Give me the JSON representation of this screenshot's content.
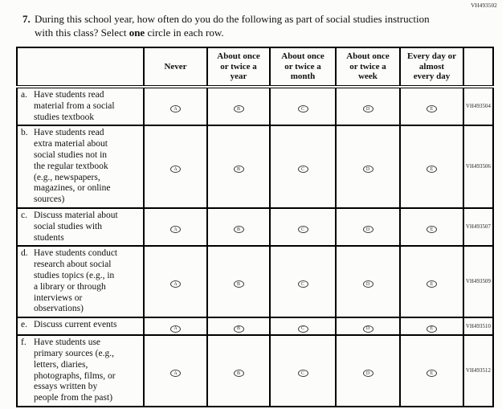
{
  "page": {
    "top_right_code": "VH493502"
  },
  "question": {
    "number": "7.",
    "text_part1": "During this school year, how often do you do the following as part of social studies instruction with this class? Select ",
    "bold_word": "one",
    "text_part2": " circle in each row."
  },
  "table": {
    "columns": [
      "Never",
      "About once\nor twice a\nyear",
      "About once\nor twice a\nmonth",
      "About once\nor twice a\nweek",
      "Every day or\nalmost\nevery day"
    ],
    "option_letters": [
      "A",
      "B",
      "C",
      "D",
      "E"
    ],
    "rows": [
      {
        "letter": "a.",
        "label": "Have students read\nmaterial from a social\nstudies textbook",
        "code": "VH493504"
      },
      {
        "letter": "b.",
        "label": "Have students read\nextra material about\nsocial studies not in\nthe regular textbook\n(e.g., newspapers,\nmagazines, or online\nsources)",
        "code": "VH493506"
      },
      {
        "letter": "c.",
        "label": "Discuss material about\nsocial studies with\nstudents",
        "code": "VH493507"
      },
      {
        "letter": "d.",
        "label": "Have students conduct\nresearch about social\nstudies topics (e.g., in\na library or through\ninterviews or\nobservations)",
        "code": "VH493509"
      },
      {
        "letter": "e.",
        "label": "Discuss current events",
        "code": "VH493510"
      },
      {
        "letter": "f.",
        "label": "Have students use\nprimary sources (e.g.,\nletters, diaries,\nphotographs, films, or\nessays written by\npeople from the past)",
        "code": "VH493512"
      }
    ]
  }
}
